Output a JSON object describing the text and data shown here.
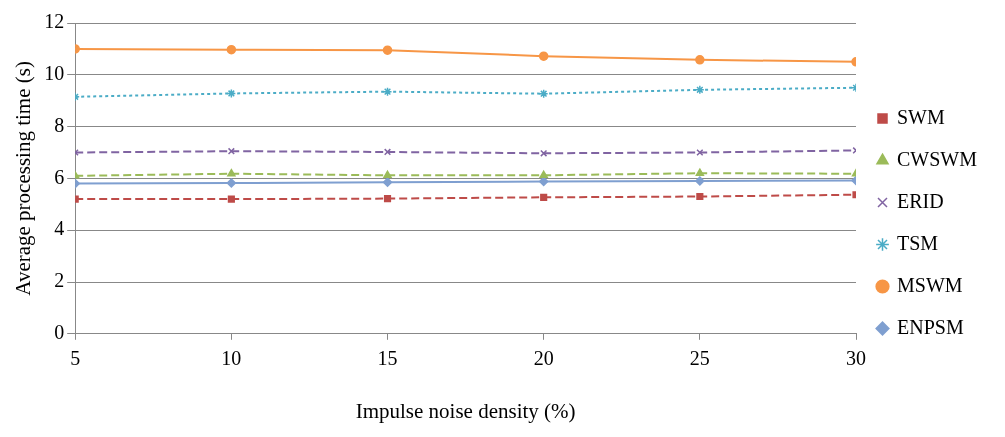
{
  "chart_data": {
    "type": "line",
    "xlabel": "Impulse noise density (%)",
    "ylabel": "Average processing time (s)",
    "x": [
      5,
      10,
      15,
      20,
      25,
      30
    ],
    "xlim": [
      5,
      30
    ],
    "xticks": [
      5,
      10,
      15,
      20,
      25,
      30
    ],
    "ylim": [
      0,
      12
    ],
    "yticks": [
      0,
      2,
      4,
      6,
      8,
      10,
      12
    ],
    "grid": "y",
    "legend": "right",
    "series": [
      {
        "name": "SWM",
        "color": "#be4b48",
        "marker": "square",
        "line_style": "dashed",
        "values": [
          5.2,
          5.2,
          5.22,
          5.27,
          5.3,
          5.37
        ]
      },
      {
        "name": "CWSWM",
        "color": "#9bbb59",
        "marker": "triangle",
        "line_style": "dashed",
        "values": [
          6.1,
          6.18,
          6.12,
          6.12,
          6.2,
          6.18
        ]
      },
      {
        "name": "ERID",
        "color": "#8064a2",
        "marker": "cross",
        "line_style": "dashed",
        "values": [
          7.0,
          7.05,
          7.02,
          6.97,
          7.0,
          7.08
        ]
      },
      {
        "name": "TSM",
        "color": "#4bacc6",
        "marker": "cross",
        "line_style": "dotted",
        "values": [
          9.15,
          9.28,
          9.35,
          9.27,
          9.42,
          9.5
        ]
      },
      {
        "name": "MSWM",
        "color": "#f79646",
        "marker": "circle",
        "line_style": "solid",
        "values": [
          11.0,
          10.97,
          10.95,
          10.72,
          10.58,
          10.5
        ]
      },
      {
        "name": "ENPSM",
        "color": "#7f9fd0",
        "marker": "diamond",
        "line_style": "solid",
        "values": [
          5.8,
          5.82,
          5.85,
          5.88,
          5.9,
          5.92
        ]
      }
    ]
  }
}
